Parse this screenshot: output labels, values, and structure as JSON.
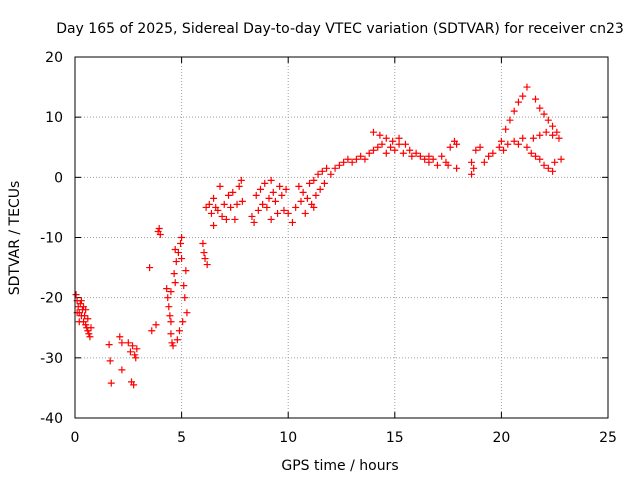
{
  "chart_data": {
    "type": "scatter",
    "title": "Day 165 of 2025, Sidereal Day-to-day VTEC variation (SDTVAR) for receiver cn23",
    "xlabel": "GPS time / hours",
    "ylabel": "SDTVAR / TECUs",
    "xlim": [
      0,
      25
    ],
    "ylim": [
      -40,
      20
    ],
    "x_ticks": [
      0,
      5,
      10,
      15,
      20,
      25
    ],
    "y_ticks": [
      -40,
      -30,
      -20,
      -10,
      0,
      10,
      20
    ],
    "x_tick_labels": [
      "0",
      "5",
      "10",
      "15",
      "20",
      "25"
    ],
    "y_tick_labels": [
      "-40",
      "-30",
      "-20",
      "-10",
      "0",
      "10",
      "20"
    ],
    "grid": true,
    "marker": "plus",
    "color": "#ff0000",
    "series": [
      {
        "name": "SDTVAR",
        "points": [
          [
            0.05,
            -19.5
          ],
          [
            0.1,
            -20.5
          ],
          [
            0.15,
            -21.5
          ],
          [
            0.2,
            -22.5
          ],
          [
            0.25,
            -21
          ],
          [
            0.3,
            -23
          ],
          [
            0.35,
            -22
          ],
          [
            0.4,
            -24
          ],
          [
            0.45,
            -23
          ],
          [
            0.5,
            -24.5
          ],
          [
            0.55,
            -25
          ],
          [
            0.6,
            -25.5
          ],
          [
            0.65,
            -26
          ],
          [
            0.7,
            -26.5
          ],
          [
            0.75,
            -25
          ],
          [
            0.3,
            -20.5
          ],
          [
            0.4,
            -21.5
          ],
          [
            0.5,
            -22
          ],
          [
            0.6,
            -23.5
          ],
          [
            0.2,
            -24
          ],
          [
            0.1,
            -22.5
          ],
          [
            1.6,
            -27.8
          ],
          [
            1.65,
            -30.5
          ],
          [
            1.7,
            -34.2
          ],
          [
            2.1,
            -26.5
          ],
          [
            2.2,
            -27.5
          ],
          [
            2.2,
            -32
          ],
          [
            2.5,
            -27.5
          ],
          [
            2.6,
            -29
          ],
          [
            2.7,
            -28
          ],
          [
            2.8,
            -29.5
          ],
          [
            2.9,
            -28.5
          ],
          [
            2.65,
            -34
          ],
          [
            2.75,
            -34.5
          ],
          [
            2.85,
            -30
          ],
          [
            3.5,
            -15
          ],
          [
            3.6,
            -25.5
          ],
          [
            3.8,
            -24.5
          ],
          [
            3.9,
            -9
          ],
          [
            3.95,
            -8.5
          ],
          [
            4.0,
            -9.5
          ],
          [
            4.3,
            -18.5
          ],
          [
            4.35,
            -20
          ],
          [
            4.4,
            -21.5
          ],
          [
            4.45,
            -23
          ],
          [
            4.5,
            -19
          ],
          [
            4.5,
            -26
          ],
          [
            4.55,
            -27.5
          ],
          [
            4.6,
            -28
          ],
          [
            4.65,
            -16
          ],
          [
            4.7,
            -17.5
          ],
          [
            4.75,
            -14
          ],
          [
            4.8,
            -27
          ],
          [
            4.85,
            -12.5
          ],
          [
            4.9,
            -25.5
          ],
          [
            4.95,
            -11
          ],
          [
            5.0,
            -10
          ],
          [
            5.05,
            -24
          ],
          [
            5.1,
            -18
          ],
          [
            5.15,
            -20
          ],
          [
            5.2,
            -15.5
          ],
          [
            5.25,
            -22.5
          ],
          [
            4.5,
            -24
          ],
          [
            4.7,
            -12
          ],
          [
            5.0,
            -13.5
          ],
          [
            6.0,
            -11
          ],
          [
            6.05,
            -12.5
          ],
          [
            6.1,
            -13.5
          ],
          [
            6.2,
            -14.5
          ],
          [
            6.15,
            -5
          ],
          [
            6.3,
            -4.5
          ],
          [
            6.4,
            -6
          ],
          [
            6.5,
            -3.5
          ],
          [
            6.6,
            -5
          ],
          [
            6.7,
            -5.5
          ],
          [
            6.8,
            -1.5
          ],
          [
            6.9,
            -6.5
          ],
          [
            7.0,
            -4.5
          ],
          [
            7.1,
            -7
          ],
          [
            7.2,
            -3
          ],
          [
            7.3,
            -5
          ],
          [
            7.4,
            -2.5
          ],
          [
            7.5,
            -7
          ],
          [
            7.6,
            -4.5
          ],
          [
            7.7,
            -1.5
          ],
          [
            7.8,
            -0.5
          ],
          [
            7.85,
            -4
          ],
          [
            6.5,
            -8
          ],
          [
            8.3,
            -6.5
          ],
          [
            8.4,
            -7.5
          ],
          [
            8.5,
            -3
          ],
          [
            8.6,
            -5.5
          ],
          [
            8.7,
            -2
          ],
          [
            8.8,
            -4.5
          ],
          [
            8.9,
            -1
          ],
          [
            9.0,
            -5
          ],
          [
            9.1,
            -3.5
          ],
          [
            9.2,
            -7
          ],
          [
            9.3,
            -2.5
          ],
          [
            9.4,
            -4
          ],
          [
            9.5,
            -6
          ],
          [
            9.6,
            -1.5
          ],
          [
            9.7,
            -3
          ],
          [
            9.8,
            -5.5
          ],
          [
            9.9,
            -2
          ],
          [
            9.2,
            -0.5
          ],
          [
            10.0,
            -6
          ],
          [
            10.2,
            -7.5
          ],
          [
            10.35,
            -5
          ],
          [
            10.5,
            -1.5
          ],
          [
            10.6,
            -4
          ],
          [
            10.7,
            -2.5
          ],
          [
            10.8,
            -6
          ],
          [
            10.9,
            -3.5
          ],
          [
            11.0,
            -1
          ],
          [
            11.1,
            -4.5
          ],
          [
            11.2,
            -0.5
          ],
          [
            11.3,
            -3
          ],
          [
            11.4,
            0.5
          ],
          [
            11.5,
            -2
          ],
          [
            11.6,
            1
          ],
          [
            11.7,
            -1
          ],
          [
            11.8,
            1.5
          ],
          [
            11.2,
            -5
          ],
          [
            12.0,
            0.5
          ],
          [
            12.2,
            1.5
          ],
          [
            12.4,
            2
          ],
          [
            12.6,
            2.5
          ],
          [
            12.8,
            3
          ],
          [
            13.0,
            2.5
          ],
          [
            13.2,
            3
          ],
          [
            13.4,
            3.5
          ],
          [
            13.6,
            3
          ],
          [
            13.8,
            4
          ],
          [
            14.0,
            4.5
          ],
          [
            14.2,
            5
          ],
          [
            14.4,
            5.5
          ],
          [
            14.6,
            4
          ],
          [
            14.8,
            5
          ],
          [
            15.0,
            4.5
          ],
          [
            15.2,
            5.5
          ],
          [
            15.4,
            4
          ],
          [
            14.0,
            7.5
          ],
          [
            14.3,
            7
          ],
          [
            14.6,
            6.5
          ],
          [
            14.9,
            6
          ],
          [
            15.2,
            6.5
          ],
          [
            15.5,
            5.5
          ],
          [
            15.7,
            4.5
          ],
          [
            15.8,
            3.5
          ],
          [
            16.0,
            4
          ],
          [
            16.2,
            3.5
          ],
          [
            16.4,
            3
          ],
          [
            16.6,
            2.5
          ],
          [
            16.8,
            3
          ],
          [
            17.0,
            2
          ],
          [
            17.2,
            3.5
          ],
          [
            17.4,
            2.5
          ],
          [
            17.5,
            2
          ],
          [
            17.6,
            5
          ],
          [
            17.8,
            6
          ],
          [
            17.9,
            5.5
          ],
          [
            16.6,
            3.5
          ],
          [
            17.9,
            1.5
          ],
          [
            18.6,
            0.5
          ],
          [
            18.7,
            1.5
          ],
          [
            18.8,
            4.5
          ],
          [
            19.2,
            2.5
          ],
          [
            19.4,
            3.5
          ],
          [
            19.6,
            4
          ],
          [
            19.9,
            5
          ],
          [
            19.0,
            5
          ],
          [
            18.6,
            2.5
          ],
          [
            20.0,
            6
          ],
          [
            20.2,
            8
          ],
          [
            20.4,
            9.5
          ],
          [
            20.6,
            11
          ],
          [
            20.8,
            12.5
          ],
          [
            21.0,
            13.5
          ],
          [
            21.2,
            15
          ],
          [
            20.6,
            6
          ],
          [
            20.8,
            5.5
          ],
          [
            21.0,
            6.5
          ],
          [
            21.2,
            5
          ],
          [
            21.4,
            4
          ],
          [
            21.6,
            3.5
          ],
          [
            21.8,
            3
          ],
          [
            22.0,
            2
          ],
          [
            22.2,
            1.5
          ],
          [
            22.4,
            1
          ],
          [
            21.5,
            6.5
          ],
          [
            21.8,
            7
          ],
          [
            22.1,
            7.5
          ],
          [
            22.4,
            7
          ],
          [
            22.7,
            6.5
          ],
          [
            21.6,
            13
          ],
          [
            21.8,
            11.5
          ],
          [
            22.0,
            10.5
          ],
          [
            22.2,
            9.5
          ],
          [
            22.4,
            8.5
          ],
          [
            22.6,
            7.5
          ],
          [
            22.8,
            3
          ],
          [
            22.5,
            2.5
          ],
          [
            20.1,
            4.5
          ],
          [
            20.3,
            5.5
          ]
        ]
      }
    ]
  }
}
